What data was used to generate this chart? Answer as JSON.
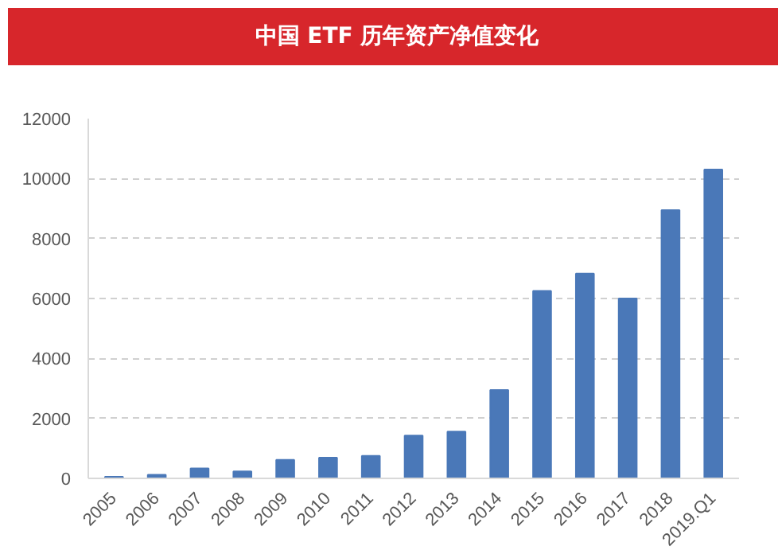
{
  "chart_data": {
    "type": "bar",
    "title": "中国 ETF 历年资产净值变化",
    "categories": [
      "2005",
      "2006",
      "2007",
      "2008",
      "2009",
      "2010",
      "2011",
      "2012",
      "2013",
      "2014",
      "2015",
      "2016",
      "2017",
      "2018",
      "2019.Q1"
    ],
    "values": [
      50,
      120,
      330,
      230,
      620,
      690,
      750,
      1430,
      1560,
      2950,
      6250,
      6830,
      6000,
      8950,
      10300
    ],
    "color": "#4a78b8",
    "ylim": [
      0,
      12000
    ],
    "yticks": [
      0,
      2000,
      4000,
      6000,
      8000,
      10000,
      12000
    ],
    "grid": "y"
  }
}
